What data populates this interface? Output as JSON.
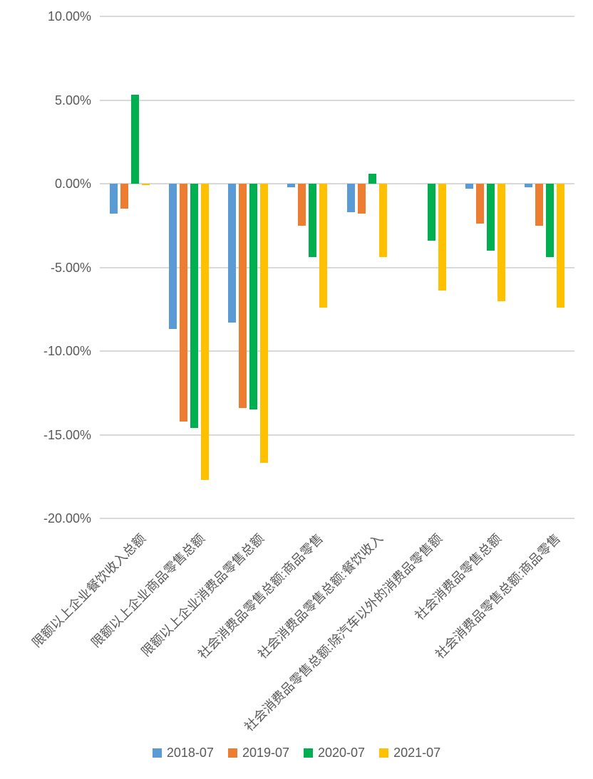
{
  "colors": {
    "background": "#ffffff",
    "text": "#595959",
    "gridline": "#d9d9d9"
  },
  "chart_data": {
    "type": "bar",
    "title": "",
    "xlabel": "",
    "ylabel": "",
    "grid": true,
    "legend_position": "bottom",
    "ylim": [
      -20,
      10
    ],
    "y_axis": {
      "ticks": [
        {
          "label": "10.00%",
          "value": 10
        },
        {
          "label": "5.00%",
          "value": 5
        },
        {
          "label": "0.00%",
          "value": 0
        },
        {
          "label": "-5.00%",
          "value": -5
        },
        {
          "label": "-10.00%",
          "value": -10
        },
        {
          "label": "-15.00%",
          "value": -15
        },
        {
          "label": "-20.00%",
          "value": -20
        }
      ]
    },
    "categories": [
      "限额以上企业餐饮收入总额",
      "限额以上企业商品零售总额",
      "限额以上企业消费品零售总额",
      "社会消费品零售总额:商品零售",
      "社会消费品零售总额:餐饮收入",
      "社会消费品零售总额:除汽车以外的消费品零售额",
      "社会消费品零售总额",
      "社会消费品零售总额:商品零售"
    ],
    "series": [
      {
        "name": "2018-07",
        "color": "#5b9bd5",
        "values": [
          -1.8,
          -8.7,
          -8.3,
          -0.2,
          -1.7,
          null,
          -0.3,
          -0.2
        ]
      },
      {
        "name": "2019-07",
        "color": "#ed7d31",
        "values": [
          -1.5,
          -14.2,
          -13.4,
          -2.5,
          -1.8,
          null,
          -2.4,
          -2.5
        ]
      },
      {
        "name": "2020-07",
        "color": "#00b050",
        "values": [
          5.3,
          -14.6,
          -13.5,
          -4.4,
          0.6,
          -3.4,
          -4.0,
          -4.4
        ]
      },
      {
        "name": "2021-07",
        "color": "#ffc000",
        "values": [
          -0.1,
          -17.7,
          -16.7,
          -7.4,
          -4.4,
          -6.4,
          -7.0,
          -7.4
        ]
      }
    ]
  }
}
